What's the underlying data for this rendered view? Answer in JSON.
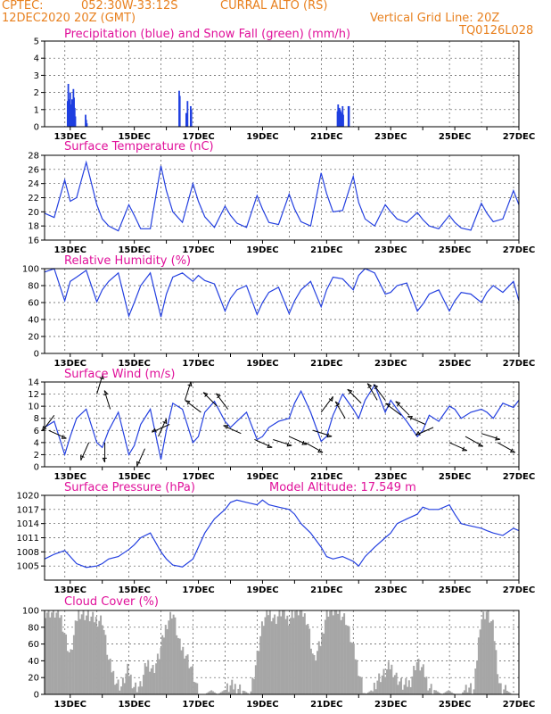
{
  "header": {
    "source": "CPTEC:",
    "coords": "052:30W-33:12S",
    "location": "CURRAL ALTO (RS)",
    "datetime": "12DEC2020 20Z (GMT)",
    "grid_note": "Vertical Grid Line: 20Z",
    "code": "TQ0126L028"
  },
  "colors": {
    "title": "#e0109a",
    "header": "#e8801e",
    "precip": "#1f3fe0",
    "snow": "#2fbf2f",
    "line": "#2440e0",
    "cloud": "#a6a6a6"
  },
  "x_ticks": [
    "13DEC",
    "15DEC",
    "17DEC",
    "19DEC",
    "21DEC",
    "23DEC",
    "25DEC",
    "27DEC"
  ],
  "chart_data": [
    {
      "id": "precip",
      "type": "bar",
      "title": "Precipitation (blue) and Snow Fall (green) (mm/h)",
      "ylim": [
        0,
        5
      ],
      "yticks": [
        0,
        1,
        2,
        3,
        4,
        5
      ],
      "series": [
        {
          "name": "Precipitation",
          "x": [
            12.92,
            12.94,
            12.96,
            12.98,
            13.0,
            13.02,
            13.04,
            13.06,
            13.08,
            13.1,
            13.12,
            13.14,
            13.16,
            13.48,
            13.5,
            13.52,
            16.4,
            16.42,
            16.62,
            16.66,
            16.76,
            16.78,
            21.34,
            21.36,
            21.38,
            21.4,
            21.42,
            21.44,
            21.46,
            21.48,
            21.5,
            21.52,
            21.68,
            21.7
          ],
          "values": [
            1.5,
            2.5,
            1.6,
            1.2,
            2.0,
            1.2,
            1.3,
            1.6,
            1.2,
            2.2,
            1.7,
            1.1,
            0.6,
            0.7,
            0.4,
            0.2,
            2.1,
            1.8,
            0.8,
            1.5,
            1.2,
            1.0,
            0.9,
            1.3,
            0.7,
            1.1,
            1.0,
            0.9,
            0.8,
            0.6,
            1.2,
            0.7,
            1.2,
            1.2
          ]
        },
        {
          "name": "Snow Fall",
          "x": [],
          "values": []
        }
      ]
    },
    {
      "id": "temp",
      "type": "line",
      "title": "Surface Temperature (nC)",
      "ylim": [
        16,
        28
      ],
      "yticks": [
        16,
        18,
        20,
        22,
        24,
        26,
        28
      ],
      "x": [
        12.2,
        12.5,
        12.83,
        13.0,
        13.2,
        13.5,
        13.83,
        14.0,
        14.2,
        14.5,
        14.83,
        15.0,
        15.2,
        15.5,
        15.83,
        16.0,
        16.2,
        16.5,
        16.83,
        17.0,
        17.2,
        17.5,
        17.83,
        18.0,
        18.2,
        18.5,
        18.83,
        19.0,
        19.2,
        19.5,
        19.83,
        20.0,
        20.2,
        20.5,
        20.83,
        21.0,
        21.2,
        21.5,
        21.83,
        22.0,
        22.2,
        22.5,
        22.83,
        23.0,
        23.2,
        23.5,
        23.83,
        24.0,
        24.2,
        24.5,
        24.83,
        25.0,
        25.2,
        25.5,
        25.83,
        26.0,
        26.2,
        26.5,
        26.83,
        27.0
      ],
      "values": [
        19.8,
        19.2,
        24.5,
        21.5,
        22.0,
        27.0,
        21.0,
        19.0,
        18.0,
        17.3,
        21.0,
        19.5,
        17.6,
        17.6,
        26.5,
        23.0,
        20.0,
        18.5,
        24.0,
        21.5,
        19.3,
        17.8,
        20.8,
        19.5,
        18.4,
        17.8,
        22.3,
        20.4,
        18.5,
        18.2,
        22.5,
        20.4,
        18.6,
        18.0,
        25.5,
        22.6,
        20.0,
        20.2,
        25.0,
        21.3,
        19.0,
        18.0,
        21.0,
        20.0,
        19.0,
        18.5,
        19.9,
        18.9,
        18.0,
        17.6,
        19.5,
        18.5,
        17.7,
        17.4,
        21.2,
        19.8,
        18.6,
        19.0,
        23.0,
        21.0
      ]
    },
    {
      "id": "rh",
      "type": "line",
      "title": "Relative Humidity (%)",
      "ylim": [
        0,
        100
      ],
      "yticks": [
        0,
        20,
        40,
        60,
        80,
        100
      ],
      "x": [
        12.2,
        12.5,
        12.83,
        13.0,
        13.2,
        13.5,
        13.83,
        14.0,
        14.2,
        14.5,
        14.83,
        15.0,
        15.2,
        15.5,
        15.83,
        16.0,
        16.2,
        16.5,
        16.83,
        17.0,
        17.2,
        17.5,
        17.83,
        18.0,
        18.2,
        18.5,
        18.83,
        19.0,
        19.2,
        19.5,
        19.83,
        20.0,
        20.2,
        20.5,
        20.83,
        21.0,
        21.2,
        21.5,
        21.83,
        22.0,
        22.2,
        22.5,
        22.83,
        23.0,
        23.2,
        23.5,
        23.83,
        24.0,
        24.2,
        24.5,
        24.83,
        25.0,
        25.2,
        25.5,
        25.83,
        26.0,
        26.2,
        26.5,
        26.83,
        27.0
      ],
      "values": [
        96,
        100,
        62,
        85,
        90,
        98,
        61,
        75,
        85,
        95,
        44,
        60,
        80,
        95,
        43,
        70,
        90,
        95,
        85,
        92,
        86,
        82,
        50,
        65,
        75,
        80,
        46,
        60,
        72,
        78,
        47,
        62,
        75,
        85,
        55,
        75,
        90,
        88,
        75,
        92,
        100,
        95,
        70,
        72,
        80,
        83,
        50,
        58,
        70,
        75,
        50,
        62,
        72,
        70,
        60,
        72,
        80,
        72,
        85,
        62
      ]
    },
    {
      "id": "wind",
      "type": "line",
      "title": "Surface Wind (m/s)",
      "ylim": [
        0,
        14
      ],
      "yticks": [
        0,
        2,
        4,
        6,
        8,
        10,
        12,
        14
      ],
      "x": [
        12.2,
        12.5,
        12.83,
        13.0,
        13.2,
        13.5,
        13.83,
        14.0,
        14.2,
        14.5,
        14.83,
        15.0,
        15.2,
        15.5,
        15.83,
        16.0,
        16.2,
        16.5,
        16.83,
        17.0,
        17.2,
        17.5,
        17.83,
        18.0,
        18.2,
        18.5,
        18.83,
        19.0,
        19.2,
        19.5,
        19.83,
        20.0,
        20.2,
        20.5,
        20.83,
        21.0,
        21.2,
        21.5,
        21.83,
        22.0,
        22.2,
        22.5,
        22.83,
        23.0,
        23.2,
        23.5,
        23.83,
        24.0,
        24.2,
        24.5,
        24.83,
        25.0,
        25.2,
        25.5,
        25.83,
        26.0,
        26.2,
        26.5,
        26.83,
        27.0
      ],
      "values": [
        6.5,
        7.5,
        2.0,
        5.0,
        8.0,
        9.5,
        4.0,
        3.2,
        6.0,
        9.0,
        2.0,
        3.5,
        7.0,
        9.5,
        1.2,
        6.0,
        10.5,
        9.5,
        4.0,
        5.0,
        9.0,
        10.8,
        7.5,
        6.5,
        7.5,
        9.0,
        4.5,
        5.0,
        6.5,
        7.5,
        8.0,
        10.5,
        12.5,
        9.0,
        4.2,
        5.0,
        8.5,
        12.0,
        9.5,
        8.0,
        11.0,
        13.5,
        9.0,
        11.0,
        9.5,
        7.5,
        5.0,
        6.0,
        8.5,
        7.5,
        10.0,
        9.5,
        8.0,
        9.0,
        9.5,
        9.0,
        8.0,
        10.5,
        9.8,
        11.0
      ],
      "vectors": [
        {
          "x": 12.33,
          "y": 6.0,
          "u": 0.9,
          "v": 0.4
        },
        {
          "x": 12.5,
          "y": 8.5,
          "u": -0.6,
          "v": 0.8
        },
        {
          "x": 13.58,
          "y": 4.0,
          "u": -0.4,
          "v": 0.9
        },
        {
          "x": 13.83,
          "y": 12.0,
          "u": 0.3,
          "v": -1.0
        },
        {
          "x": 14.08,
          "y": 4.0,
          "u": 0.0,
          "v": 1.0
        },
        {
          "x": 14.25,
          "y": 9.5,
          "u": -0.3,
          "v": -0.95
        },
        {
          "x": 15.33,
          "y": 3.0,
          "u": -0.4,
          "v": 0.9
        },
        {
          "x": 15.75,
          "y": 5.0,
          "u": 0.4,
          "v": -0.9
        },
        {
          "x": 16.1,
          "y": 7.0,
          "u": -0.9,
          "v": 0.4
        },
        {
          "x": 16.58,
          "y": 11.0,
          "u": 0.3,
          "v": -0.95
        },
        {
          "x": 17.08,
          "y": 9.0,
          "u": -0.8,
          "v": -0.6
        },
        {
          "x": 17.58,
          "y": 10.0,
          "u": -0.7,
          "v": -0.7
        },
        {
          "x": 17.92,
          "y": 9.5,
          "u": -0.6,
          "v": -0.8
        },
        {
          "x": 18.33,
          "y": 5.5,
          "u": -0.9,
          "v": -0.4
        },
        {
          "x": 18.75,
          "y": 4.5,
          "u": 0.9,
          "v": 0.4
        },
        {
          "x": 19.33,
          "y": 4.5,
          "u": 0.95,
          "v": 0.3
        },
        {
          "x": 19.83,
          "y": 5.0,
          "u": 0.9,
          "v": 0.4
        },
        {
          "x": 20.33,
          "y": 4.0,
          "u": 0.9,
          "v": 0.5
        },
        {
          "x": 20.58,
          "y": 6.0,
          "u": 0.95,
          "v": 0.3
        },
        {
          "x": 20.83,
          "y": 9.0,
          "u": 0.6,
          "v": -0.8
        },
        {
          "x": 21.58,
          "y": 8.0,
          "u": -0.5,
          "v": -0.85
        },
        {
          "x": 22.08,
          "y": 10.5,
          "u": -0.7,
          "v": -0.7
        },
        {
          "x": 22.58,
          "y": 11.0,
          "u": -0.5,
          "v": -0.85
        },
        {
          "x": 22.83,
          "y": 11.0,
          "u": -0.6,
          "v": -0.8
        },
        {
          "x": 23.33,
          "y": 8.5,
          "u": -0.8,
          "v": -0.6
        },
        {
          "x": 23.58,
          "y": 8.5,
          "u": -0.7,
          "v": -0.7
        },
        {
          "x": 24.08,
          "y": 7.0,
          "u": -0.9,
          "v": -0.4
        },
        {
          "x": 24.33,
          "y": 6.5,
          "u": -0.9,
          "v": 0.4
        },
        {
          "x": 24.83,
          "y": 4.0,
          "u": 0.9,
          "v": 0.4
        },
        {
          "x": 25.33,
          "y": 5.0,
          "u": 0.9,
          "v": 0.5
        },
        {
          "x": 25.83,
          "y": 5.5,
          "u": 0.95,
          "v": 0.3
        },
        {
          "x": 26.33,
          "y": 4.0,
          "u": 0.9,
          "v": 0.5
        }
      ]
    },
    {
      "id": "pres",
      "type": "line",
      "title": "Surface Pressure (hPa)",
      "annotation": "Model Altitude: 17.549 m",
      "ylim": [
        1002,
        1020
      ],
      "yticks": [
        1005,
        1008,
        1011,
        1014,
        1017,
        1020
      ],
      "x": [
        12.2,
        12.5,
        12.83,
        13.0,
        13.2,
        13.5,
        13.83,
        14.0,
        14.2,
        14.5,
        14.83,
        15.0,
        15.2,
        15.5,
        15.83,
        16.0,
        16.2,
        16.5,
        16.83,
        17.0,
        17.2,
        17.5,
        17.83,
        18.0,
        18.2,
        18.5,
        18.83,
        19.0,
        19.2,
        19.5,
        19.83,
        20.0,
        20.2,
        20.5,
        20.83,
        21.0,
        21.2,
        21.5,
        21.83,
        22.0,
        22.2,
        22.5,
        22.83,
        23.0,
        23.2,
        23.5,
        23.83,
        24.0,
        24.2,
        24.5,
        24.83,
        25.0,
        25.2,
        25.5,
        25.83,
        26.0,
        26.2,
        26.5,
        26.83,
        27.0
      ],
      "values": [
        1006.5,
        1007.5,
        1008.3,
        1007.0,
        1005.5,
        1004.7,
        1005.0,
        1005.5,
        1006.5,
        1007.0,
        1008.5,
        1009.5,
        1011.0,
        1012.0,
        1008.0,
        1006.5,
        1005.2,
        1004.8,
        1006.5,
        1009.0,
        1012.0,
        1015.0,
        1017.0,
        1018.5,
        1019.0,
        1018.5,
        1018.0,
        1019.0,
        1018.0,
        1017.5,
        1017.0,
        1016.0,
        1014.0,
        1012.0,
        1009.0,
        1007.0,
        1006.5,
        1007.0,
        1006.0,
        1005.0,
        1007.0,
        1009.0,
        1011.0,
        1012.0,
        1014.0,
        1015.0,
        1016.0,
        1017.5,
        1017.0,
        1017.0,
        1018.0,
        1016.0,
        1014.0,
        1013.5,
        1013.0,
        1012.5,
        1012.0,
        1011.5,
        1013.0,
        1012.5
      ]
    },
    {
      "id": "cloud",
      "type": "bar",
      "title": "Cloud Cover (%)",
      "ylim": [
        0,
        100
      ],
      "yticks": [
        0,
        20,
        40,
        60,
        80,
        100
      ],
      "x": [
        12.3,
        12.7,
        13.0,
        13.25,
        13.5,
        13.75,
        14.0,
        14.2,
        14.45,
        14.6,
        14.8,
        15.0,
        15.2,
        15.4,
        15.6,
        15.8,
        16.0,
        16.2,
        16.4,
        16.6,
        16.8,
        17.0,
        17.2,
        17.4,
        17.6,
        17.8,
        18.0,
        18.2,
        18.4,
        18.6,
        18.8,
        19.0,
        19.2,
        19.4,
        19.6,
        19.8,
        20.0,
        20.2,
        20.4,
        20.6,
        20.8,
        21.0,
        21.2,
        21.4,
        21.6,
        21.8,
        22.0,
        22.2,
        22.4,
        22.6,
        22.8,
        23.0,
        23.2,
        23.4,
        23.6,
        23.8,
        24.0,
        24.2,
        24.4,
        24.6,
        24.8,
        25.0,
        25.2,
        25.4,
        25.6,
        25.8,
        26.0,
        26.2,
        26.4,
        26.6,
        26.8,
        27.0
      ],
      "values": [
        100,
        95,
        45,
        100,
        95,
        90,
        90,
        40,
        15,
        10,
        30,
        10,
        10,
        40,
        30,
        50,
        85,
        100,
        60,
        50,
        30,
        0,
        0,
        5,
        0,
        5,
        10,
        10,
        5,
        0,
        40,
        85,
        100,
        90,
        100,
        90,
        100,
        100,
        90,
        40,
        60,
        100,
        100,
        100,
        90,
        60,
        30,
        0,
        5,
        20,
        25,
        35,
        20,
        10,
        15,
        40,
        30,
        10,
        5,
        0,
        5,
        0,
        0,
        10,
        5,
        90,
        100,
        80,
        10,
        5,
        0,
        0
      ]
    }
  ]
}
